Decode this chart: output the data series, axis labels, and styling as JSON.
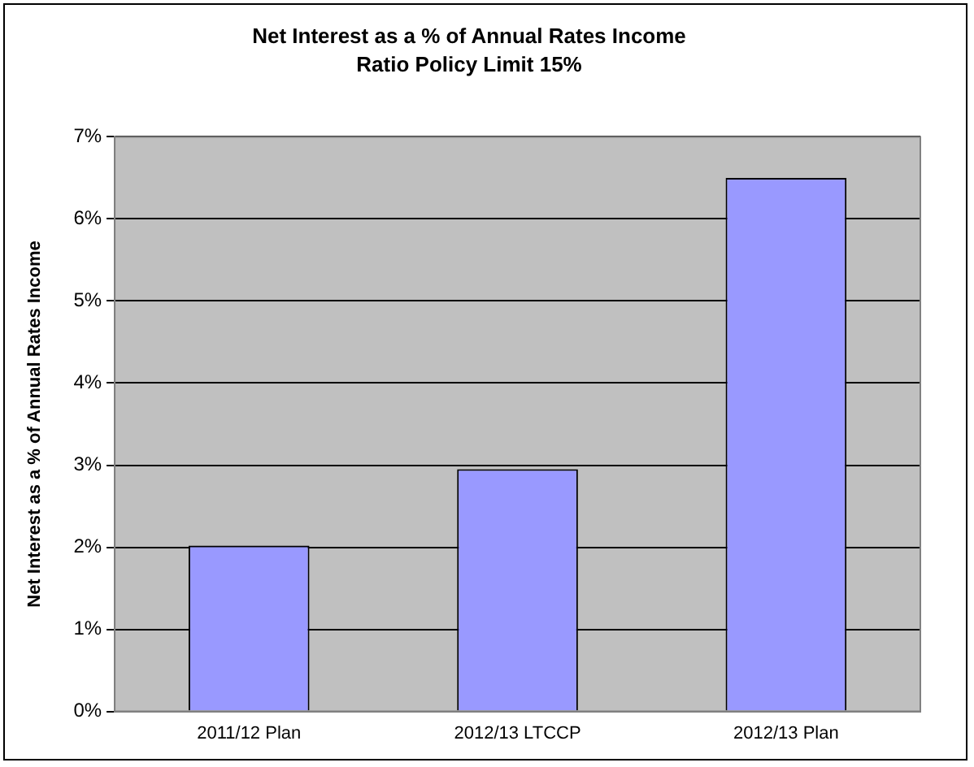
{
  "chart_data": {
    "type": "bar",
    "title": "Net Interest as a % of Annual Rates Income",
    "subtitle": "Ratio Policy Limit 15%",
    "ylabel": "Net Interest as a % of Annual Rates Income",
    "categories": [
      "2011/12 Plan",
      "2012/13 LTCCP",
      "2012/13 Plan"
    ],
    "values": [
      2.02,
      2.95,
      6.5
    ],
    "color": "#9999ff",
    "ylim": [
      0,
      7
    ],
    "yticks": [
      {
        "value": 0,
        "label": "0%"
      },
      {
        "value": 1,
        "label": "1%"
      },
      {
        "value": 2,
        "label": "2%"
      },
      {
        "value": 3,
        "label": "3%"
      },
      {
        "value": 4,
        "label": "4%"
      },
      {
        "value": 5,
        "label": "5%"
      },
      {
        "value": 6,
        "label": "6%"
      },
      {
        "value": 7,
        "label": "7%"
      }
    ],
    "grid": "y",
    "legend": false
  }
}
